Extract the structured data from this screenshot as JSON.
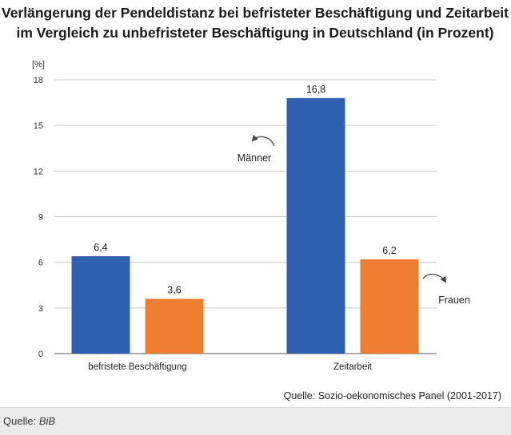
{
  "chart_data": {
    "type": "bar",
    "title_lines": [
      "Verlängerung der Pendeldistanz bei befristeter Beschäftigung und Zeitarbeit",
      "im Vergleich zu unbefristeter Beschäftigung in Deutschland (in Prozent)"
    ],
    "unit_label": "[%]",
    "categories": [
      "befristete Beschäftigung",
      "Zeitarbeit"
    ],
    "series": [
      {
        "name": "Männer",
        "color": "#3060b0",
        "values": [
          6.4,
          16.8
        ],
        "value_labels": [
          "6,4",
          "16,8"
        ]
      },
      {
        "name": "Frauen",
        "color": "#ef7d2f",
        "values": [
          3.6,
          6.2
        ],
        "value_labels": [
          "3,6",
          "6,2"
        ]
      }
    ],
    "ylim": [
      0,
      18
    ],
    "yticks": [
      0,
      3,
      6,
      9,
      12,
      15,
      18
    ],
    "grid": true,
    "source_note": "Quelle: Sozio-oekonomisches Panel (2001-2017)"
  },
  "footer": {
    "prefix": "Quelle:",
    "source": "BiB"
  }
}
